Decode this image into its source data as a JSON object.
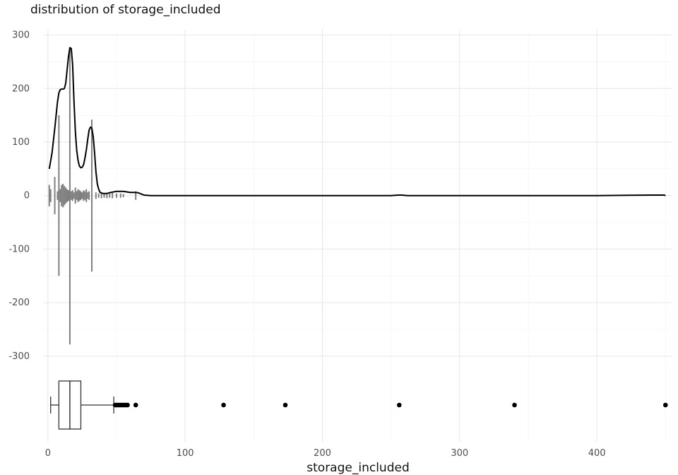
{
  "chart_data": {
    "type": "density+violin+boxplot",
    "title": "distribution of storage_included",
    "xlabel": "storage_included",
    "ylabel": "",
    "xlim": [
      -3,
      455
    ],
    "ylim": [
      -460,
      310
    ],
    "x_ticks": [
      0,
      100,
      200,
      300,
      400
    ],
    "y_ticks": [
      300,
      200,
      100,
      0,
      -100,
      -200,
      -300
    ],
    "grid": true,
    "density_curve": {
      "x": [
        1,
        3,
        5,
        7,
        8,
        9,
        10,
        11,
        12,
        13,
        14,
        15,
        16,
        17,
        18,
        19,
        20,
        21,
        22,
        23,
        24,
        25,
        26,
        27,
        28,
        29,
        30,
        31,
        32,
        33,
        34,
        35,
        36,
        37,
        38,
        40,
        43,
        46,
        50,
        55,
        60,
        64,
        66,
        68,
        70,
        75,
        100,
        150,
        200,
        250,
        255,
        258,
        262,
        265,
        300,
        350,
        400,
        440,
        446,
        449,
        450
      ],
      "y": [
        50,
        80,
        125,
        175,
        192,
        198,
        199,
        199,
        200,
        210,
        235,
        260,
        276,
        275,
        245,
        175,
        120,
        85,
        65,
        55,
        52,
        53,
        58,
        70,
        85,
        105,
        122,
        128,
        126,
        110,
        80,
        45,
        22,
        12,
        6,
        4,
        4,
        6,
        8,
        8,
        6,
        6,
        5,
        3,
        1,
        0,
        0,
        0,
        0,
        0,
        1,
        1,
        0,
        0,
        0,
        0,
        0,
        1,
        1,
        1,
        0
      ]
    },
    "violin_bars": {
      "x": [
        1,
        2,
        5,
        7,
        8,
        9,
        10,
        11,
        12,
        13,
        14,
        15,
        16,
        17,
        18,
        19,
        20,
        21,
        22,
        23,
        24,
        25,
        26,
        27,
        28,
        29,
        30,
        32,
        35,
        37,
        39,
        41,
        43,
        45,
        47,
        50,
        53,
        55,
        64
      ],
      "half_height": [
        20,
        12,
        35,
        8,
        150,
        12,
        20,
        22,
        18,
        15,
        12,
        10,
        278,
        8,
        10,
        6,
        15,
        8,
        12,
        10,
        8,
        6,
        10,
        8,
        12,
        6,
        8,
        142,
        6,
        4,
        5,
        4,
        5,
        4,
        5,
        4,
        4,
        3,
        8
      ]
    },
    "boxplot": {
      "min": 2,
      "q1": 8,
      "median": 16,
      "q3": 24,
      "max": 48,
      "outliers": [
        49,
        50,
        51,
        52,
        53,
        54,
        55,
        56,
        57,
        58,
        64,
        128,
        173,
        256,
        340,
        450
      ]
    }
  }
}
